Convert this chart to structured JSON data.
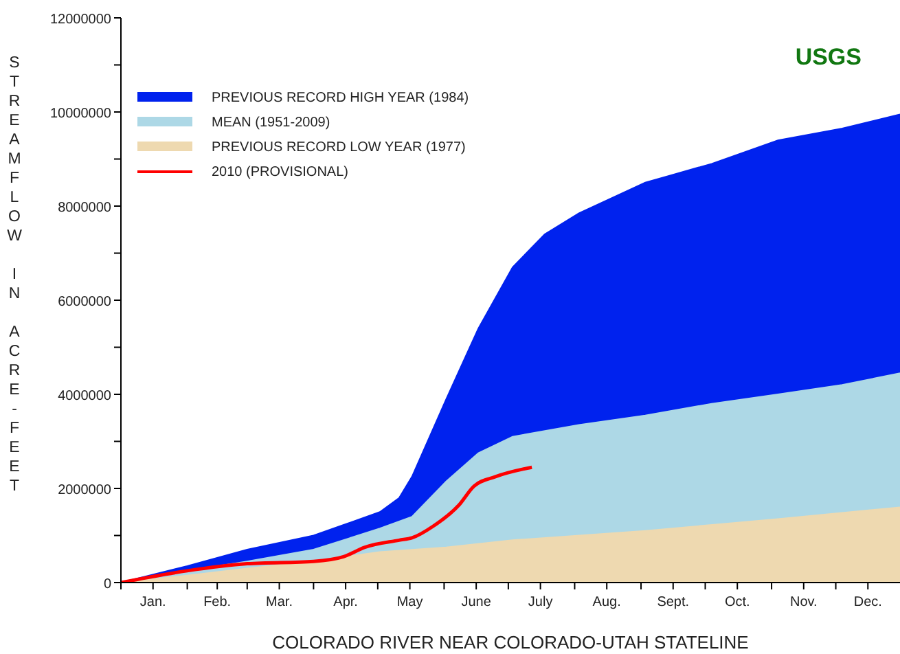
{
  "chart_data": {
    "type": "area",
    "xlabel": "COLORADO RIVER NEAR COLORADO-UTAH STATELINE",
    "ylabel": "STREAMFLOW IN ACRE-FEET",
    "annotations": [
      "USGS"
    ],
    "legend": "top left",
    "grid": false,
    "xlim": [
      "--01-01",
      "--12-31"
    ],
    "xticks": [
      {
        "value": "--01-01",
        "label": null
      },
      {
        "value": "--01-16",
        "label": "Jan."
      },
      {
        "value": "--02-01",
        "label": null
      },
      {
        "value": "--02-15",
        "label": "Feb."
      },
      {
        "value": "--03-01",
        "label": null
      },
      {
        "value": "--03-16",
        "label": "Mar."
      },
      {
        "value": "--04-01",
        "label": null
      },
      {
        "value": "--04-16",
        "label": "Apr."
      },
      {
        "value": "--05-01",
        "label": null
      },
      {
        "value": "--05-16",
        "label": "May"
      },
      {
        "value": "--06-01",
        "label": null
      },
      {
        "value": "--06-16",
        "label": "June"
      },
      {
        "value": "--07-01",
        "label": null
      },
      {
        "value": "--07-16",
        "label": "July"
      },
      {
        "value": "--08-01",
        "label": null
      },
      {
        "value": "--08-16",
        "label": "Aug."
      },
      {
        "value": "--09-01",
        "label": null
      },
      {
        "value": "--09-16",
        "label": "Sept."
      },
      {
        "value": "--10-01",
        "label": null
      },
      {
        "value": "--10-16",
        "label": "Oct."
      },
      {
        "value": "--11-01",
        "label": null
      },
      {
        "value": "--11-16",
        "label": "Nov."
      },
      {
        "value": "--12-01",
        "label": null
      },
      {
        "value": "--12-16",
        "label": "Dec."
      }
    ],
    "ylim": [
      0,
      12000000
    ],
    "yticks": [
      0,
      {
        "value": 1000000,
        "label": null
      },
      2000000,
      {
        "value": 3000000,
        "label": null
      },
      4000000,
      {
        "value": 5000000,
        "label": null
      },
      6000000,
      {
        "value": 7000000,
        "label": null
      },
      8000000,
      {
        "value": 9000000,
        "label": null
      },
      10000000,
      {
        "value": 11000000,
        "label": null
      },
      12000000
    ],
    "series": [
      {
        "name": "PREVIOUS RECORD HIGH YEAR (1984)",
        "color": "#0022ee",
        "x": [
          "--01-01",
          "--02-01",
          "--03-01",
          "--04-01",
          "--05-02",
          "--05-11",
          "--05-17",
          "--06-02",
          "--06-17",
          "--07-03",
          "--07-18",
          "--08-03",
          "--09-03",
          "--10-04",
          "--11-04",
          "--12-04",
          "--12-31"
        ],
        "values": [
          0,
          350000,
          700000,
          1000000,
          1500000,
          1800000,
          2250000,
          3900000,
          5400000,
          6700000,
          7400000,
          7850000,
          8500000,
          8900000,
          9400000,
          9650000,
          9950000
        ]
      },
      {
        "name": "MEAN (1951-2009)",
        "color": "#add8e6",
        "x": [
          "--01-01",
          "--02-01",
          "--03-01",
          "--04-01",
          "--05-02",
          "--05-17",
          "--06-02",
          "--06-17",
          "--07-03",
          "--08-03",
          "--09-03",
          "--10-04",
          "--11-04",
          "--12-04",
          "--12-31"
        ],
        "values": [
          0,
          250000,
          450000,
          700000,
          1150000,
          1400000,
          2150000,
          2750000,
          3100000,
          3350000,
          3550000,
          3800000,
          4000000,
          4200000,
          4450000
        ]
      },
      {
        "name": "PREVIOUS RECORD LOW YEAR (1977)",
        "color": "#eed9b0",
        "x": [
          "--01-01",
          "--02-01",
          "--03-01",
          "--04-01",
          "--05-02",
          "--06-02",
          "--07-03",
          "--09-03",
          "--11-04",
          "--12-31"
        ],
        "values": [
          0,
          150000,
          300000,
          450000,
          650000,
          750000,
          900000,
          1100000,
          1350000,
          1600000
        ]
      },
      {
        "name": "2010 (PROVISIONAL)",
        "type": "line",
        "color": "#ff0000",
        "x": [
          "--01-01",
          "--02-01",
          "--03-01",
          "--04-01",
          "--04-15",
          "--04-25",
          "--05-11",
          "--05-17",
          "--05-27",
          "--06-08",
          "--06-15",
          "--06-25",
          "--07-12"
        ],
        "values": [
          0,
          250000,
          400000,
          450000,
          550000,
          750000,
          900000,
          950000,
          1200000,
          1650000,
          2050000,
          2250000,
          2450000
        ]
      }
    ]
  }
}
